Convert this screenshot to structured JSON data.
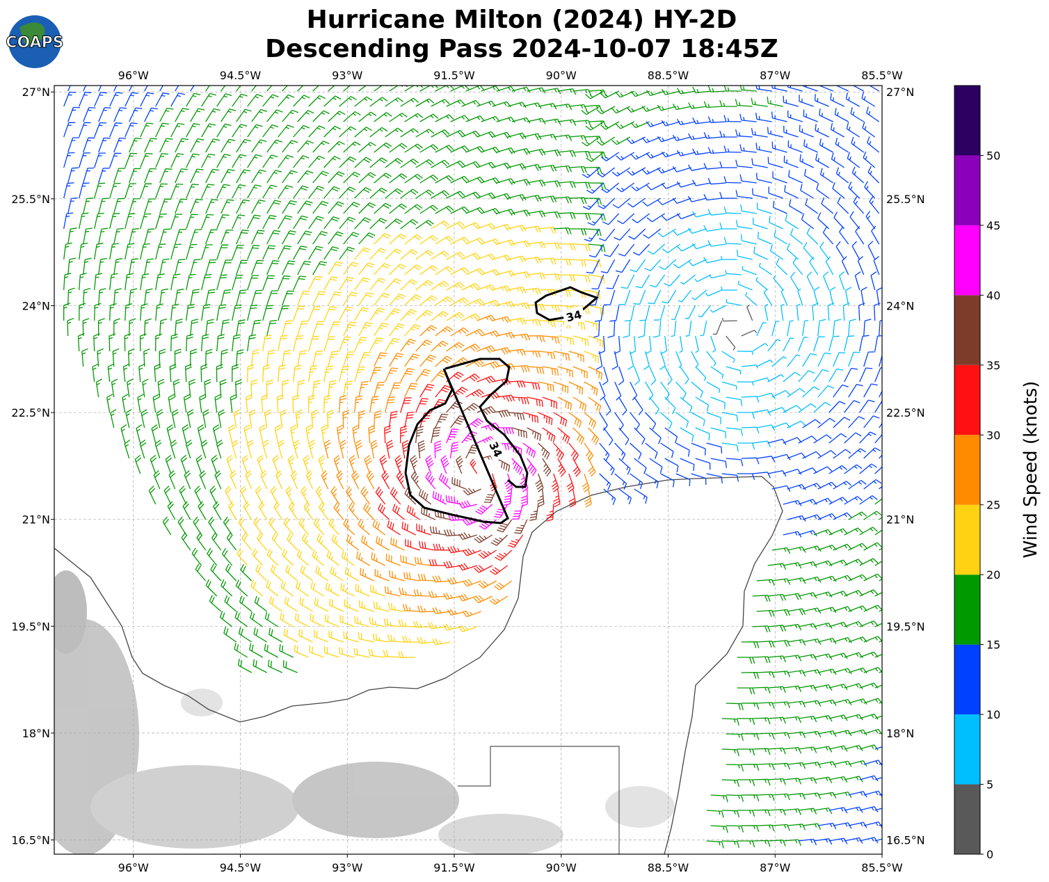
{
  "header": {
    "title": [
      "Hurricane Milton (2024) HY-2D",
      "Descending Pass 2024-10-07 18:45Z"
    ],
    "logo": "COAPS"
  },
  "map": {
    "lon_range": [
      -97.11,
      -85.5
    ],
    "lat_range": [
      16.3,
      27.09
    ],
    "lon_ticks": [
      {
        "value": -96,
        "label": "96°W"
      },
      {
        "value": -94.5,
        "label": "94.5°W"
      },
      {
        "value": -93,
        "label": "93°W"
      },
      {
        "value": -91.5,
        "label": "91.5°W"
      },
      {
        "value": -90,
        "label": "90°W"
      },
      {
        "value": -88.5,
        "label": "88.5°W"
      },
      {
        "value": -87,
        "label": "87°W"
      },
      {
        "value": -85.5,
        "label": "85.5°W"
      }
    ],
    "lat_ticks": [
      {
        "value": 27,
        "label": "27°N"
      },
      {
        "value": 25.5,
        "label": "25.5°N"
      },
      {
        "value": 24,
        "label": "24°N"
      },
      {
        "value": 22.5,
        "label": "22.5°N"
      },
      {
        "value": 21,
        "label": "21°N"
      },
      {
        "value": 19.5,
        "label": "19.5°N"
      },
      {
        "value": 18,
        "label": "18°N"
      },
      {
        "value": 16.5,
        "label": "16.5°N"
      }
    ],
    "contour_labels": [
      "34",
      "34"
    ]
  },
  "colorbar": {
    "label": "Wind Speed (knots)",
    "bounds": [
      0,
      5,
      10,
      15,
      20,
      25,
      30,
      35,
      40,
      45,
      50,
      55
    ],
    "colors": [
      "#595959",
      "#00bfff",
      "#0040ff",
      "#009900",
      "#ffd311",
      "#ff8c00",
      "#ff1111",
      "#7d3c2a",
      "#ff00ff",
      "#8b00bb",
      "#2b0060"
    ],
    "ticks": [
      0,
      5,
      10,
      15,
      20,
      25,
      30,
      35,
      40,
      45,
      50
    ]
  }
}
